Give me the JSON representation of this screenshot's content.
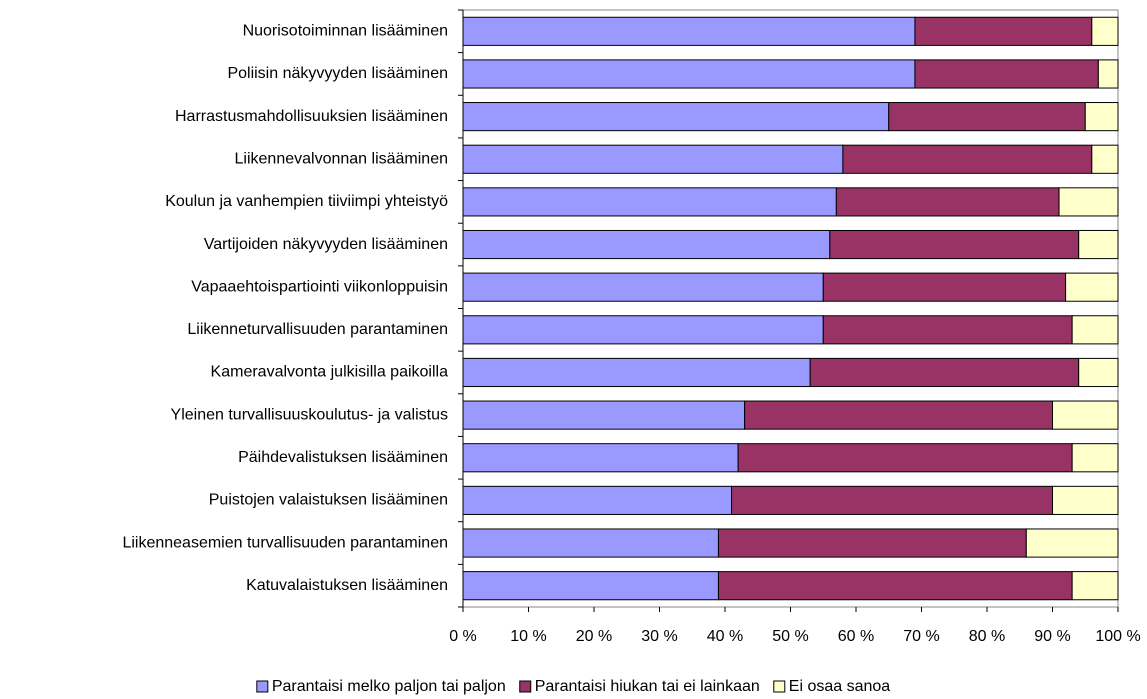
{
  "chart_data": {
    "type": "bar",
    "orientation": "horizontal",
    "stacked": true,
    "categories": [
      "Nuorisotoiminnan lisääminen",
      "Poliisin näkyvyyden lisääminen",
      "Harrastusmahdollisuuksien lisääminen",
      "Liikennevalvonnan lisääminen",
      "Koulun ja vanhempien tiiviimpi yhteistyö",
      "Vartijoiden näkyvyyden lisääminen",
      "Vapaaehtoispartiointi viikonloppuisin",
      "Liikenneturvallisuuden parantaminen",
      "Kameravalvonta julkisilla paikoilla",
      "Yleinen turvallisuuskoulutus- ja valistus",
      "Päihdevalistuksen lisääminen",
      "Puistojen valaistuksen lisääminen",
      "Liikenneasemien turvallisuuden parantaminen",
      "Katuvalaistuksen lisääminen"
    ],
    "series": [
      {
        "name": "Parantaisi melko paljon tai paljon",
        "color": "#9999ff",
        "values": [
          69,
          69,
          65,
          58,
          57,
          56,
          55,
          55,
          53,
          43,
          42,
          41,
          39,
          39
        ]
      },
      {
        "name": "Parantaisi hiukan tai ei lainkaan",
        "color": "#993366",
        "values": [
          27,
          28,
          30,
          38,
          34,
          38,
          37,
          38,
          41,
          47,
          51,
          49,
          47,
          54
        ]
      },
      {
        "name": "Ei osaa sanoa",
        "color": "#ffffcc",
        "values": [
          4,
          3,
          5,
          4,
          9,
          6,
          8,
          7,
          6,
          10,
          7,
          10,
          14,
          7
        ]
      }
    ],
    "xlim": [
      0,
      100
    ],
    "xticks": [
      {
        "value": 0,
        "label": "0 %"
      },
      {
        "value": 10,
        "label": "10 %"
      },
      {
        "value": 20,
        "label": "20 %"
      },
      {
        "value": 30,
        "label": "30 %"
      },
      {
        "value": 40,
        "label": "40 %"
      },
      {
        "value": 50,
        "label": "50 %"
      },
      {
        "value": 60,
        "label": "60 %"
      },
      {
        "value": 70,
        "label": "70 %"
      },
      {
        "value": 80,
        "label": "80 %"
      },
      {
        "value": 90,
        "label": "90 %"
      },
      {
        "value": 100,
        "label": "100 %"
      }
    ],
    "grid": false,
    "legend": "bottom"
  }
}
